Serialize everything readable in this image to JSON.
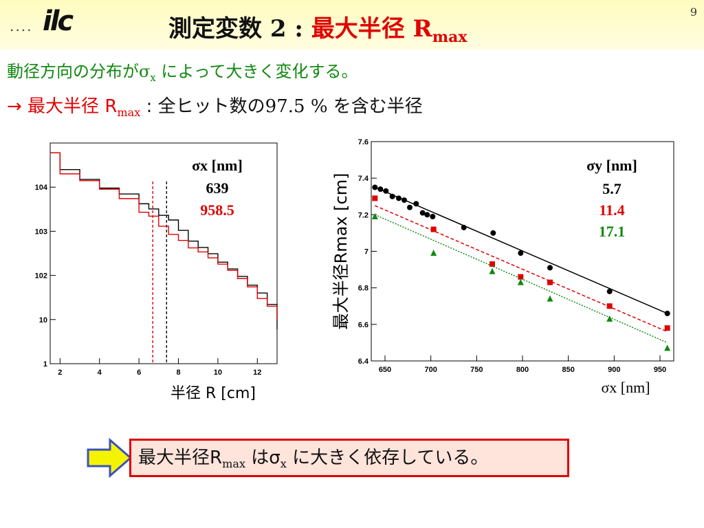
{
  "header": {
    "logo_dots": "....",
    "logo_text": "ilc",
    "title_main": "測定変数 2 : ",
    "title_red": "最大半径 R",
    "title_sub": "max",
    "slide_number": "9"
  },
  "body": {
    "line1_prefix": "動径方向の分布が",
    "line1_sigma": "σ",
    "line1_sub": "x",
    "line1_suffix": " によって大きく変化する。",
    "line2_arrow": "→ 最大半径 R",
    "line2_arrow_sub": "max",
    "line2_colon": " : ",
    "line2_text1": "全ヒット数の",
    "line2_percent": "97.5 %",
    "line2_text2": " を含む半径"
  },
  "conclusion": {
    "text1": "最大半径R",
    "sub1": "max",
    "text2": " はσ",
    "sub2": "x",
    "text3": " に大きく依存している。"
  },
  "colors": {
    "black_series": "#000000",
    "red_series": "#e00000",
    "green_series": "#118811",
    "arrow_fill": "#f4f400",
    "arrow_stroke": "#3a50c0"
  },
  "chart_data": [
    {
      "type": "line",
      "xlabel": "半径 R [cm]",
      "ylabel": "",
      "xlim": [
        1.5,
        13
      ],
      "ylim": [
        1,
        100000
      ],
      "log_y": true,
      "grid": false,
      "x_ticks": [
        "2",
        "4",
        "6",
        "8",
        "10",
        "12"
      ],
      "y_ticks": [
        "1",
        "10",
        "10^2",
        "10^3",
        "10^4"
      ],
      "legend_title": "σx [nm]",
      "legend_entries": [
        "639",
        "958.5"
      ],
      "series": [
        {
          "name": "639",
          "color": "#000000",
          "points": [
            [
              1.5,
              60000
            ],
            [
              2,
              25000
            ],
            [
              3,
              15000
            ],
            [
              4,
              9500
            ],
            [
              5,
              7000
            ],
            [
              6,
              4200
            ],
            [
              6.5,
              3200
            ],
            [
              7,
              2300
            ],
            [
              7.5,
              1800
            ],
            [
              8,
              1050
            ],
            [
              8.5,
              600
            ],
            [
              9,
              430
            ],
            [
              9.5,
              310
            ],
            [
              10,
              200
            ],
            [
              10.5,
              140
            ],
            [
              11,
              95
            ],
            [
              11.5,
              60
            ],
            [
              12,
              40
            ],
            [
              12.5,
              22
            ],
            [
              13,
              6
            ]
          ],
          "rmax": 7.4
        },
        {
          "name": "958.5",
          "color": "#e00000",
          "points": [
            [
              1.5,
              60000
            ],
            [
              2,
              20000
            ],
            [
              3,
              14000
            ],
            [
              4,
              9000
            ],
            [
              5,
              5500
            ],
            [
              6,
              2700
            ],
            [
              6.5,
              2200
            ],
            [
              7,
              1300
            ],
            [
              7.5,
              850
            ],
            [
              8,
              620
            ],
            [
              8.5,
              420
            ],
            [
              9,
              340
            ],
            [
              9.5,
              250
            ],
            [
              10,
              180
            ],
            [
              10.5,
              130
            ],
            [
              11,
              85
            ],
            [
              11.5,
              55
            ],
            [
              12,
              30
            ],
            [
              12.5,
              20
            ],
            [
              13,
              10
            ]
          ],
          "rmax": 6.7
        }
      ]
    },
    {
      "type": "scatter",
      "xlabel": "σx [nm]",
      "ylabel": "最大半径Rmax [cm]",
      "xlim": [
        635,
        965
      ],
      "ylim": [
        6.4,
        7.6
      ],
      "grid": false,
      "x_ticks": [
        "650",
        "700",
        "750",
        "800",
        "850",
        "900",
        "950"
      ],
      "y_ticks": [
        "6.4",
        "6.6",
        "6.8",
        "7",
        "7.2",
        "7.4",
        "7.6"
      ],
      "legend_title": "σy [nm]",
      "legend_entries": [
        "5.7",
        "11.4",
        "17.1"
      ],
      "series": [
        {
          "name": "5.7",
          "color": "#000000",
          "marker": "circle",
          "points": [
            [
              639,
              7.35
            ],
            [
              645,
              7.34
            ],
            [
              651,
              7.33
            ],
            [
              658,
              7.3
            ],
            [
              665,
              7.29
            ],
            [
              671,
              7.28
            ],
            [
              677,
              7.24
            ],
            [
              684,
              7.26
            ],
            [
              691,
              7.21
            ],
            [
              696,
              7.2
            ],
            [
              702,
              7.19
            ],
            [
              736,
              7.13
            ],
            [
              768,
              7.1
            ],
            [
              798,
              6.99
            ],
            [
              830,
              6.91
            ],
            [
              895,
              6.78
            ],
            [
              958,
              6.66
            ]
          ],
          "fit": [
            [
              639,
              7.35
            ],
            [
              958,
              6.66
            ]
          ]
        },
        {
          "name": "11.4",
          "color": "#e00000",
          "marker": "square",
          "points": [
            [
              639,
              7.29
            ],
            [
              703,
              7.12
            ],
            [
              767,
              6.93
            ],
            [
              798,
              6.86
            ],
            [
              830,
              6.83
            ],
            [
              895,
              6.7
            ],
            [
              958,
              6.58
            ]
          ],
          "fit": [
            [
              639,
              7.25
            ],
            [
              958,
              6.56
            ]
          ]
        },
        {
          "name": "17.1",
          "color": "#118811",
          "marker": "triangle",
          "points": [
            [
              639,
              7.19
            ],
            [
              703,
              6.99
            ],
            [
              767,
              6.89
            ],
            [
              798,
              6.83
            ],
            [
              830,
              6.74
            ],
            [
              895,
              6.63
            ],
            [
              958,
              6.47
            ]
          ],
          "fit": [
            [
              639,
              7.2
            ],
            [
              958,
              6.5
            ]
          ]
        }
      ]
    }
  ]
}
